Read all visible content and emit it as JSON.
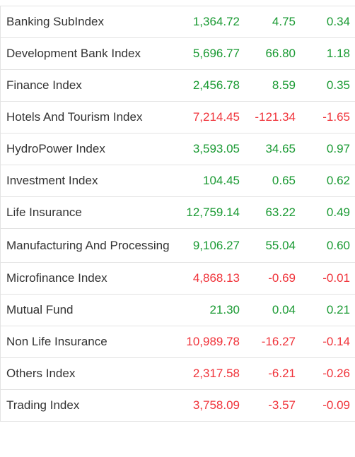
{
  "colors": {
    "up": "#1a9a33",
    "down": "#f0333a",
    "text": "#333333",
    "border": "#e3e3e3"
  },
  "rows": [
    {
      "name": "Banking SubIndex",
      "value": "1,364.72",
      "change": "4.75",
      "percent": "0.34",
      "direction": "up"
    },
    {
      "name": "Development Bank Index",
      "value": "5,696.77",
      "change": "66.80",
      "percent": "1.18",
      "direction": "up"
    },
    {
      "name": "Finance Index",
      "value": "2,456.78",
      "change": "8.59",
      "percent": "0.35",
      "direction": "up"
    },
    {
      "name": "Hotels And Tourism Index",
      "value": "7,214.45",
      "change": "-121.34",
      "percent": "-1.65",
      "direction": "down"
    },
    {
      "name": "HydroPower Index",
      "value": "3,593.05",
      "change": "34.65",
      "percent": "0.97",
      "direction": "up"
    },
    {
      "name": "Investment Index",
      "value": "104.45",
      "change": "0.65",
      "percent": "0.62",
      "direction": "up"
    },
    {
      "name": "Life Insurance",
      "value": "12,759.14",
      "change": "63.22",
      "percent": "0.49",
      "direction": "up"
    },
    {
      "name": "Manufacturing And Processing",
      "value": "9,106.27",
      "change": "55.04",
      "percent": "0.60",
      "direction": "up"
    },
    {
      "name": "Microfinance Index",
      "value": "4,868.13",
      "change": "-0.69",
      "percent": "-0.01",
      "direction": "down"
    },
    {
      "name": "Mutual Fund",
      "value": "21.30",
      "change": "0.04",
      "percent": "0.21",
      "direction": "up"
    },
    {
      "name": "Non Life Insurance",
      "value": "10,989.78",
      "change": "-16.27",
      "percent": "-0.14",
      "direction": "down"
    },
    {
      "name": "Others Index",
      "value": "2,317.58",
      "change": "-6.21",
      "percent": "-0.26",
      "direction": "down"
    },
    {
      "name": "Trading Index",
      "value": "3,758.09",
      "change": "-3.57",
      "percent": "-0.09",
      "direction": "down"
    }
  ]
}
